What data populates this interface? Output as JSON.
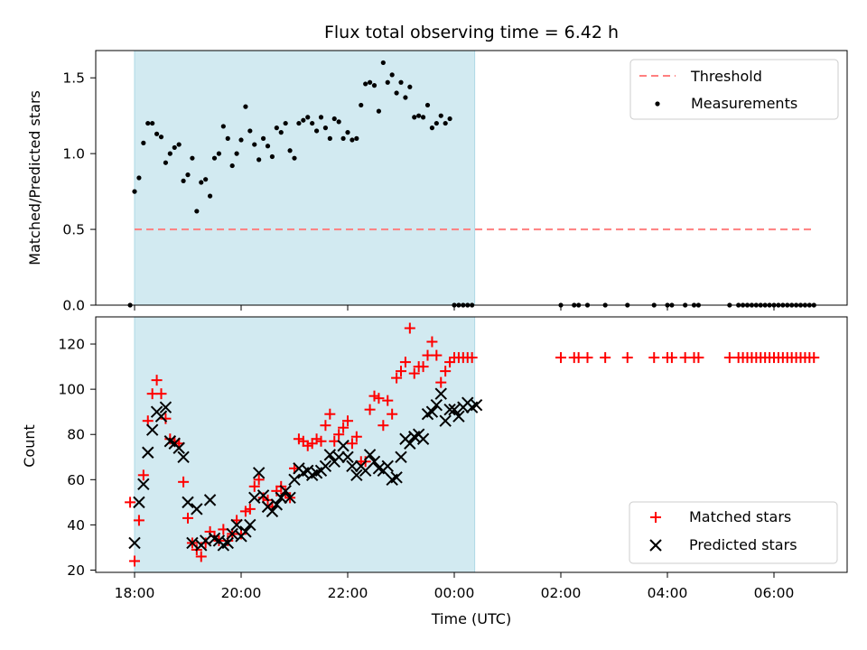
{
  "figure": {
    "title": "Flux total observing time = 6.42 h",
    "xlabel": "Time (UTC)",
    "x_ticks": [
      "18:00",
      "20:00",
      "22:00",
      "00:00",
      "02:00",
      "04:00",
      "06:00"
    ],
    "shaded_interval": [
      "18:00",
      "00:23"
    ],
    "colors": {
      "shade": "#add8e6",
      "threshold": "#ff7f7f",
      "measurements": "#000000",
      "matched": "#ff0000",
      "predicted": "#000000"
    }
  },
  "chart_data": [
    {
      "type": "scatter",
      "ylabel": "Matched/Predicted stars",
      "ylim": [
        0,
        1.68
      ],
      "yticks": [
        "0.0",
        "0.5",
        "1.0",
        "1.5"
      ],
      "legend_position": "top-right",
      "threshold": {
        "name": "Threshold",
        "value": 0.5,
        "x_range": [
          "18:00",
          "06:45"
        ]
      },
      "series": [
        {
          "name": "Measurements",
          "x": [
            "17:55",
            "18:00",
            "18:05",
            "18:10",
            "18:15",
            "18:20",
            "18:25",
            "18:30",
            "18:35",
            "18:40",
            "18:45",
            "18:50",
            "18:55",
            "19:00",
            "19:05",
            "19:10",
            "19:15",
            "19:20",
            "19:25",
            "19:30",
            "19:35",
            "19:40",
            "19:45",
            "19:50",
            "19:55",
            "20:00",
            "20:05",
            "20:10",
            "20:15",
            "20:20",
            "20:25",
            "20:30",
            "20:35",
            "20:40",
            "20:45",
            "20:50",
            "20:55",
            "21:00",
            "21:05",
            "21:10",
            "21:15",
            "21:20",
            "21:25",
            "21:30",
            "21:35",
            "21:40",
            "21:45",
            "21:50",
            "21:55",
            "22:00",
            "22:05",
            "22:10",
            "22:15",
            "22:20",
            "22:25",
            "22:30",
            "22:35",
            "22:40",
            "22:45",
            "22:50",
            "22:55",
            "23:00",
            "23:05",
            "23:10",
            "23:15",
            "23:20",
            "23:25",
            "23:30",
            "23:35",
            "23:40",
            "23:45",
            "23:50",
            "23:55",
            "00:00",
            "00:05",
            "00:10",
            "00:15",
            "00:20",
            "02:00",
            "02:15",
            "02:20",
            "02:30",
            "02:50",
            "03:15",
            "03:45",
            "04:00",
            "04:05",
            "04:20",
            "04:30",
            "04:35",
            "05:10",
            "05:20",
            "05:25",
            "05:30",
            "05:35",
            "05:40",
            "05:45",
            "05:50",
            "05:55",
            "06:00",
            "06:05",
            "06:10",
            "06:15",
            "06:20",
            "06:25",
            "06:30",
            "06:35",
            "06:40",
            "06:45"
          ],
          "y": [
            0.0,
            0.75,
            0.84,
            1.07,
            1.2,
            1.2,
            1.13,
            1.11,
            0.94,
            1.0,
            1.04,
            1.06,
            0.82,
            0.86,
            0.97,
            0.62,
            0.81,
            0.83,
            0.72,
            0.97,
            1.0,
            1.18,
            1.1,
            0.92,
            1.0,
            1.09,
            1.31,
            1.15,
            1.06,
            0.96,
            1.1,
            1.05,
            0.98,
            1.17,
            1.14,
            1.2,
            1.02,
            0.97,
            1.2,
            1.22,
            1.24,
            1.2,
            1.15,
            1.24,
            1.17,
            1.1,
            1.23,
            1.21,
            1.1,
            1.14,
            1.09,
            1.1,
            1.32,
            1.46,
            1.47,
            1.45,
            1.28,
            1.6,
            1.47,
            1.52,
            1.4,
            1.47,
            1.37,
            1.44,
            1.24,
            1.25,
            1.24,
            1.32,
            1.17,
            1.2,
            1.25,
            1.2,
            1.23,
            0.0,
            0.0,
            0.0,
            0.0,
            0.0,
            0.0,
            0.0,
            0.0,
            0.0,
            0.0,
            0.0,
            0.0,
            0.0,
            0.0,
            0.0,
            0.0,
            0.0,
            0.0,
            0.0,
            0.0,
            0.0,
            0.0,
            0.0,
            0.0,
            0.0,
            0.0,
            0.0,
            0.0,
            0.0,
            0.0,
            0.0,
            0.0,
            0.0,
            0.0,
            0.0,
            0.0
          ]
        }
      ]
    },
    {
      "type": "scatter",
      "ylabel": "Count",
      "ylim": [
        19,
        132
      ],
      "yticks": [
        "20",
        "40",
        "60",
        "80",
        "100",
        "120"
      ],
      "legend_position": "bottom-right",
      "series": [
        {
          "name": "Matched stars",
          "marker": "+",
          "x": [
            "17:55",
            "18:00",
            "18:05",
            "18:10",
            "18:15",
            "18:20",
            "18:25",
            "18:30",
            "18:35",
            "18:40",
            "18:45",
            "18:50",
            "18:55",
            "19:00",
            "19:05",
            "19:10",
            "19:15",
            "19:20",
            "19:25",
            "19:30",
            "19:35",
            "19:40",
            "19:45",
            "19:50",
            "19:55",
            "20:00",
            "20:05",
            "20:10",
            "20:15",
            "20:20",
            "20:25",
            "20:30",
            "20:35",
            "20:40",
            "20:45",
            "20:50",
            "20:55",
            "21:00",
            "21:05",
            "21:10",
            "21:15",
            "21:20",
            "21:25",
            "21:30",
            "21:35",
            "21:40",
            "21:45",
            "21:50",
            "21:55",
            "22:00",
            "22:05",
            "22:10",
            "22:15",
            "22:20",
            "22:25",
            "22:30",
            "22:35",
            "22:40",
            "22:45",
            "22:50",
            "22:55",
            "23:00",
            "23:05",
            "23:10",
            "23:15",
            "23:20",
            "23:25",
            "23:30",
            "23:35",
            "23:40",
            "23:45",
            "23:50",
            "23:55",
            "00:00",
            "00:05",
            "00:10",
            "00:15",
            "00:20",
            "02:00",
            "02:15",
            "02:20",
            "02:30",
            "02:50",
            "03:15",
            "03:45",
            "04:00",
            "04:05",
            "04:20",
            "04:30",
            "04:35",
            "05:10",
            "05:20",
            "05:25",
            "05:30",
            "05:35",
            "05:40",
            "05:45",
            "05:50",
            "05:55",
            "06:00",
            "06:05",
            "06:10",
            "06:15",
            "06:20",
            "06:25",
            "06:30",
            "06:35",
            "06:40",
            "06:45"
          ],
          "y": [
            50,
            24,
            42,
            62,
            86,
            98,
            104,
            98,
            87,
            78,
            77,
            76,
            59,
            43,
            32,
            29,
            26,
            32,
            37,
            35,
            33,
            38,
            33,
            36,
            42,
            36,
            46,
            47,
            57,
            60,
            52,
            51,
            48,
            55,
            57,
            54,
            52,
            65,
            78,
            77,
            75,
            76,
            78,
            77,
            84,
            89,
            77,
            80,
            83,
            86,
            76,
            79,
            68,
            68,
            91,
            97,
            96,
            84,
            95,
            89,
            105,
            108,
            112,
            127,
            107,
            110,
            110,
            115,
            121,
            115,
            103,
            108,
            112,
            114,
            114,
            114,
            114,
            114,
            114,
            114,
            114,
            114,
            114,
            114,
            114,
            114,
            114,
            114,
            114,
            114,
            114,
            114,
            114,
            114,
            114,
            114,
            114,
            114,
            114,
            114,
            114,
            114,
            114,
            114,
            114,
            114,
            114,
            114,
            114
          ]
        },
        {
          "name": "Predicted stars",
          "marker": "x",
          "x": [
            "18:00",
            "18:05",
            "18:10",
            "18:15",
            "18:20",
            "18:25",
            "18:30",
            "18:35",
            "18:40",
            "18:45",
            "18:50",
            "18:55",
            "19:00",
            "19:05",
            "19:10",
            "19:15",
            "19:20",
            "19:25",
            "19:30",
            "19:35",
            "19:40",
            "19:45",
            "19:50",
            "19:55",
            "20:00",
            "20:05",
            "20:10",
            "20:15",
            "20:20",
            "20:25",
            "20:30",
            "20:35",
            "20:40",
            "20:45",
            "20:50",
            "20:55",
            "21:00",
            "21:05",
            "21:10",
            "21:15",
            "21:20",
            "21:25",
            "21:30",
            "21:35",
            "21:40",
            "21:45",
            "21:50",
            "21:55",
            "22:00",
            "22:05",
            "22:10",
            "22:15",
            "22:20",
            "22:25",
            "22:30",
            "22:35",
            "22:40",
            "22:45",
            "22:50",
            "22:55",
            "23:00",
            "23:05",
            "23:10",
            "23:15",
            "23:20",
            "23:25",
            "23:30",
            "23:35",
            "23:40",
            "23:45",
            "23:50",
            "23:55",
            "00:00",
            "00:05",
            "00:10",
            "00:15",
            "00:20",
            "00:25"
          ],
          "y": [
            32,
            50,
            58,
            72,
            82,
            90,
            88,
            92,
            77,
            76,
            74,
            70,
            50,
            32,
            47,
            31,
            33,
            51,
            34,
            33,
            31,
            32,
            36,
            40,
            35,
            37,
            40,
            52,
            63,
            53,
            48,
            46,
            49,
            52,
            55,
            52,
            60,
            65,
            63,
            64,
            62,
            63,
            64,
            66,
            71,
            68,
            70,
            75,
            70,
            66,
            62,
            66,
            64,
            71,
            68,
            65,
            64,
            66,
            60,
            61,
            70,
            78,
            76,
            79,
            80,
            78,
            89,
            90,
            93,
            98,
            86,
            91,
            91,
            88,
            92,
            94,
            92,
            93
          ]
        }
      ]
    }
  ]
}
